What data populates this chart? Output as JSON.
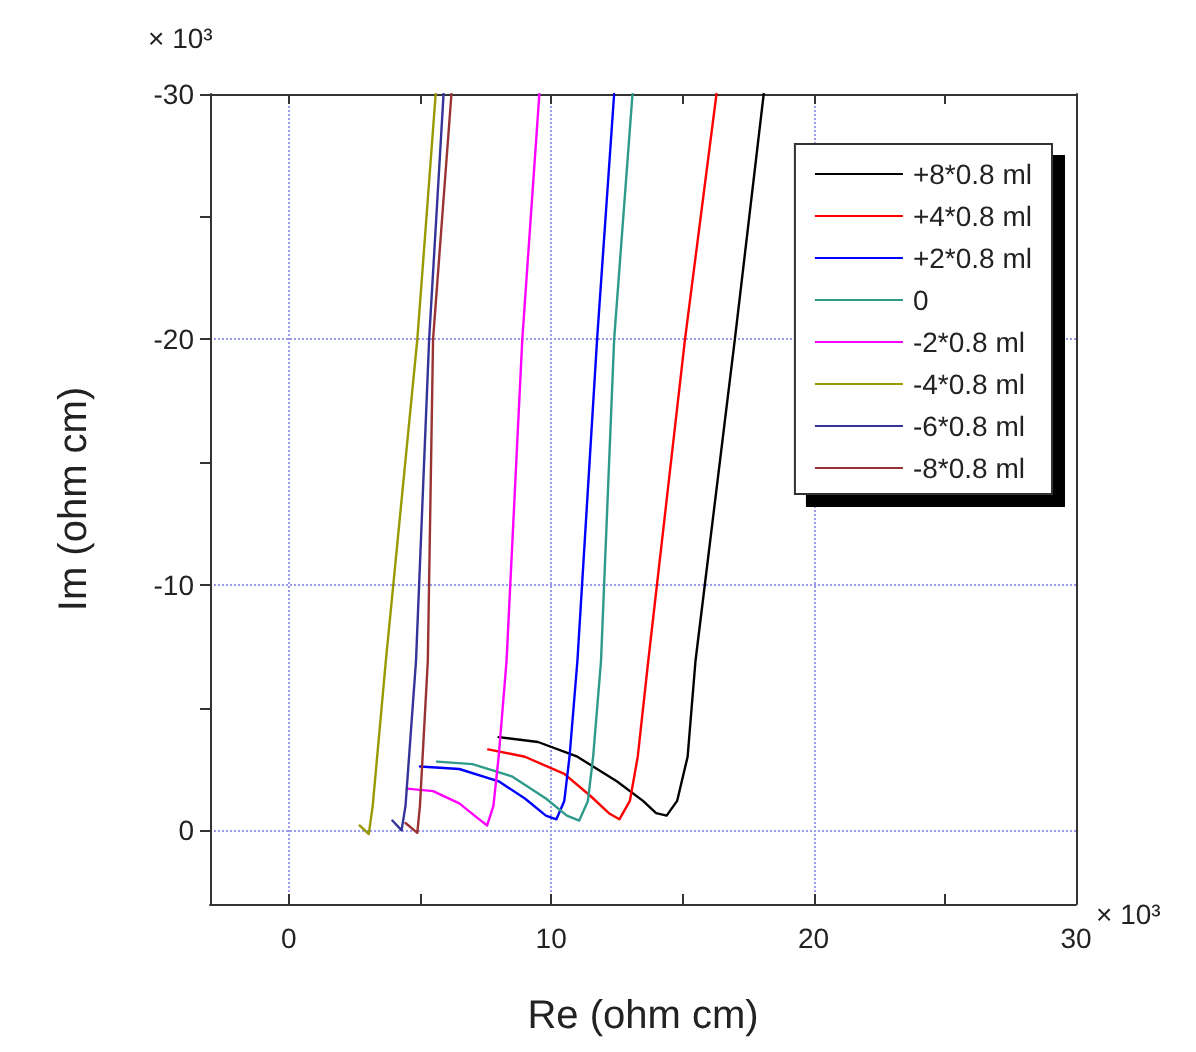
{
  "chart_data": {
    "type": "line",
    "xlabel": "Re (ohm cm)",
    "ylabel": "Im (ohm cm)",
    "annotations": [
      "× 10³",
      "× 10³"
    ],
    "xlim": [
      -3,
      30
    ],
    "xticks": [
      0,
      {
        "value": 5,
        "label": null
      },
      10,
      {
        "value": 15,
        "label": null
      },
      20,
      {
        "value": 25,
        "label": null
      },
      30
    ],
    "ylim": [
      3,
      -30
    ],
    "yticks": [
      0,
      {
        "value": -5,
        "label": null
      },
      -10,
      {
        "value": -15,
        "label": null
      },
      -20,
      {
        "value": -25,
        "label": null
      },
      -30
    ],
    "grid": true,
    "legend": "top right",
    "marker": "none",
    "line_style": "solid",
    "series": [
      {
        "name": "+8*0.8 ml",
        "color": "#000000",
        "x": [
          8.0,
          9.5,
          11,
          12.5,
          13.5,
          14.0,
          14.4,
          14.8,
          15.2,
          15.5,
          17.0,
          18.1
        ],
        "values": [
          -3.8,
          -3.6,
          -3.0,
          -2.0,
          -1.2,
          -0.7,
          -0.6,
          -1.2,
          -3,
          -6.9,
          -20,
          -30
        ]
      },
      {
        "name": "+4*0.8 ml",
        "color": "#ff0000",
        "x": [
          7.6,
          9,
          10.5,
          11.5,
          12.2,
          12.6,
          13.0,
          13.3,
          13.7,
          15.1,
          16.3
        ],
        "values": [
          -3.3,
          -3.0,
          -2.3,
          -1.4,
          -0.7,
          -0.45,
          -1.2,
          -3,
          -6.9,
          -20,
          -30
        ]
      },
      {
        "name": "+2*0.8 ml",
        "color": "#0000ff",
        "x": [
          5.0,
          6.5,
          8,
          9,
          9.8,
          10.2,
          10.5,
          10.7,
          11.0,
          11.75,
          12.4
        ],
        "values": [
          -2.6,
          -2.5,
          -2.0,
          -1.3,
          -0.6,
          -0.45,
          -1.2,
          -3,
          -6.9,
          -20,
          -30
        ]
      },
      {
        "name": "0",
        "color": "#2e9a8a",
        "x": [
          5.65,
          7,
          8.5,
          9.8,
          10.6,
          11.07,
          11.4,
          11.6,
          11.9,
          12.4,
          13.1
        ],
        "values": [
          -2.8,
          -2.7,
          -2.2,
          -1.3,
          -0.6,
          -0.4,
          -1.2,
          -3,
          -6.9,
          -20,
          -30
        ]
      },
      {
        "name": "-2*0.8 ml",
        "color": "#ff00ff",
        "x": [
          4.5,
          5.5,
          6.5,
          7.2,
          7.56,
          7.8,
          8.0,
          8.3,
          8.9,
          9.55
        ],
        "values": [
          -1.7,
          -1.6,
          -1.1,
          -0.5,
          -0.2,
          -1,
          -3,
          -6.9,
          -20,
          -30
        ]
      },
      {
        "name": "-4*0.8 ml",
        "color": "#999900",
        "x": [
          2.7,
          3.05,
          3.2,
          3.7,
          4.9,
          5.6
        ],
        "values": [
          -0.2,
          0.15,
          -1,
          -6.9,
          -20,
          -30
        ]
      },
      {
        "name": "-6*0.8 ml",
        "color": "#333399",
        "x": [
          3.95,
          4.3,
          4.45,
          4.85,
          5.35,
          5.9
        ],
        "values": [
          -0.4,
          0,
          -1,
          -6.9,
          -20,
          -30
        ]
      },
      {
        "name": "-8*0.8 ml",
        "color": "#993333",
        "x": [
          4.45,
          4.9,
          5.0,
          5.3,
          5.5,
          6.2
        ],
        "values": [
          -0.3,
          0.1,
          -1,
          -6.9,
          -20,
          -30
        ]
      }
    ]
  }
}
